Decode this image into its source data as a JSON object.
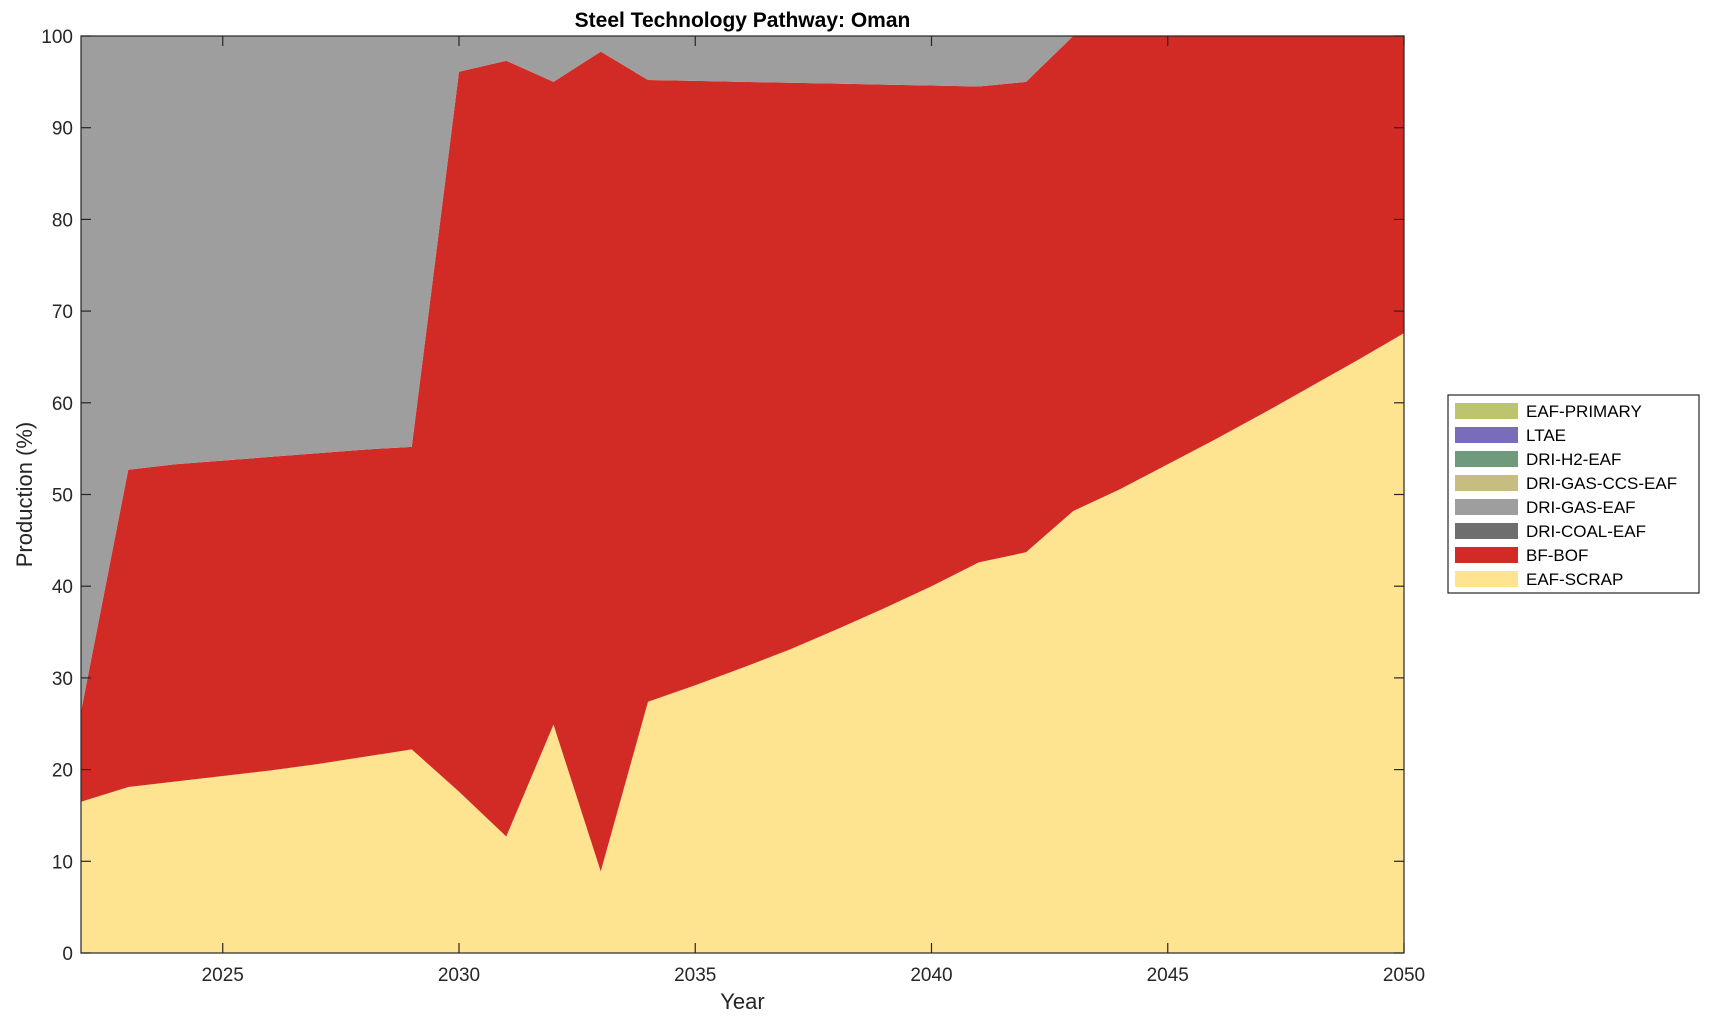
{
  "chart_data": {
    "type": "area",
    "title": "Steel Technology Pathway: Oman",
    "xlabel": "Year",
    "ylabel": "Production (%)",
    "xlim": [
      2022,
      2050
    ],
    "ylim": [
      0,
      100
    ],
    "xticks": [
      2025,
      2030,
      2035,
      2040,
      2045,
      2050
    ],
    "yticks": [
      0,
      10,
      20,
      30,
      40,
      50,
      60,
      70,
      80,
      90,
      100
    ],
    "stacked": true,
    "grid": false,
    "legend_position": "right",
    "x": [
      2022,
      2023,
      2024,
      2025,
      2026,
      2027,
      2028,
      2029,
      2030,
      2031,
      2032,
      2033,
      2034,
      2035,
      2036,
      2037,
      2038,
      2039,
      2040,
      2041,
      2042,
      2043,
      2044,
      2045,
      2046,
      2047,
      2048,
      2049,
      2050
    ],
    "legend": [
      "EAF-PRIMARY",
      "LTAE",
      "DRI-H2-EAF",
      "DRI-GAS-CCS-EAF",
      "DRI-GAS-EAF",
      "DRI-COAL-EAF",
      "BF-BOF",
      "EAF-SCRAP"
    ],
    "series": [
      {
        "name": "EAF-SCRAP",
        "color": "#fee391",
        "values": [
          16.5,
          18.1,
          18.7,
          19.3,
          19.9,
          20.6,
          21.4,
          22.2,
          17.6,
          12.7,
          24.9,
          8.9,
          27.4,
          29.2,
          31.1,
          33.1,
          35.3,
          37.6,
          40.0,
          42.6,
          43.7,
          48.2,
          50.6,
          53.3,
          56.0,
          58.8,
          61.7,
          64.6,
          67.6
        ]
      },
      {
        "name": "BF-BOF",
        "color": "#d22b25",
        "values": [
          9.8,
          34.6,
          34.6,
          34.4,
          34.2,
          33.9,
          33.5,
          33.0,
          78.5,
          84.6,
          70.1,
          89.4,
          67.8,
          65.9,
          63.9,
          61.8,
          59.5,
          57.1,
          54.6,
          51.9,
          51.3,
          51.8,
          49.4,
          46.7,
          44.0,
          41.2,
          38.3,
          35.4,
          32.4
        ]
      },
      {
        "name": "DRI-GAS-EAF",
        "color": "#9e9e9e",
        "values": [
          73.7,
          47.3,
          46.7,
          46.3,
          45.9,
          45.5,
          45.1,
          44.8,
          3.9,
          2.7,
          5.0,
          1.7,
          4.8,
          4.9,
          5.0,
          5.1,
          5.2,
          5.3,
          5.4,
          5.5,
          5.0,
          0,
          0,
          0,
          0,
          0,
          0,
          0,
          0
        ]
      },
      {
        "name": "DRI-COAL-EAF",
        "color": "#6e6e6e",
        "values": [
          0,
          0,
          0,
          0,
          0,
          0,
          0,
          0,
          0,
          0,
          0,
          0,
          0,
          0,
          0,
          0,
          0,
          0,
          0,
          0,
          0,
          0,
          0,
          0,
          0,
          0,
          0,
          0,
          0
        ]
      },
      {
        "name": "DRI-GAS-CCS-EAF",
        "color": "#c6bd7f",
        "values": [
          0,
          0,
          0,
          0,
          0,
          0,
          0,
          0,
          0,
          0,
          0,
          0,
          0,
          0,
          0,
          0,
          0,
          0,
          0,
          0,
          0,
          0,
          0,
          0,
          0,
          0,
          0,
          0,
          0
        ]
      },
      {
        "name": "DRI-H2-EAF",
        "color": "#6f9a7c",
        "values": [
          0,
          0,
          0,
          0,
          0,
          0,
          0,
          0,
          0,
          0,
          0,
          0,
          0,
          0,
          0,
          0,
          0,
          0,
          0,
          0,
          0,
          0,
          0,
          0,
          0,
          0,
          0,
          0,
          0
        ]
      },
      {
        "name": "LTAE",
        "color": "#7a6cbc",
        "values": [
          0,
          0,
          0,
          0,
          0,
          0,
          0,
          0,
          0,
          0,
          0,
          0,
          0,
          0,
          0,
          0,
          0,
          0,
          0,
          0,
          0,
          0,
          0,
          0,
          0,
          0,
          0,
          0,
          0
        ]
      },
      {
        "name": "EAF-PRIMARY",
        "color": "#bcc46e",
        "values": [
          0,
          0,
          0,
          0,
          0,
          0,
          0,
          0,
          0,
          0,
          0,
          0,
          0,
          0,
          0,
          0,
          0,
          0,
          0,
          0,
          0,
          0,
          0,
          0,
          0,
          0,
          0,
          0,
          0
        ]
      }
    ]
  }
}
